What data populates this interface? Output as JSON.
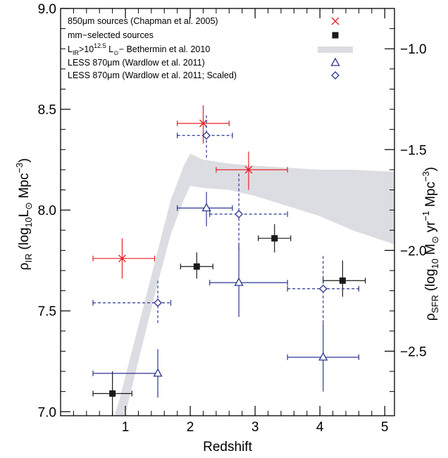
{
  "chart_data": {
    "type": "scatter",
    "xlabel": "Redshift",
    "ylabel_left": "ρIR (log10L⊙ Mpc−3)",
    "ylabel_right": "ρSFR (log10 M⊙ yr−1 Mpc−3)",
    "xlim": [
      0,
      5.15
    ],
    "ylim": [
      6.98,
      9.0
    ],
    "right_axis_offset": -9.8,
    "x_ticks": [
      1,
      2,
      3,
      4,
      5
    ],
    "y_ticks": [
      7.0,
      7.5,
      8.0,
      8.5,
      9.0
    ],
    "y_tick_labels": [
      "7.0",
      "7.5",
      "8.0",
      "8.5",
      "9.0"
    ],
    "right_ticks": [
      -1.0,
      -1.5,
      -2.0,
      -2.5
    ],
    "right_tick_labels": [
      "−1.0",
      "−1.5",
      "−2.0",
      "−2.5"
    ],
    "legend_position": "top-left",
    "colors": {
      "chapman": "#e8202a",
      "mm": "#1a1a1a",
      "bethermin": "#dcdde2",
      "wardlow": "#2c3690"
    },
    "band": {
      "name": "L_IR>10^12.5 L_⊙ – Bethermin et al. 2010",
      "upper": [
        [
          0.75,
          6.9
        ],
        [
          0.9,
          7.05
        ],
        [
          1.1,
          7.3
        ],
        [
          1.3,
          7.55
        ],
        [
          1.5,
          7.8
        ],
        [
          1.7,
          8.05
        ],
        [
          1.9,
          8.22
        ],
        [
          2.0,
          8.28
        ],
        [
          2.2,
          8.25
        ],
        [
          2.6,
          8.23
        ],
        [
          3.0,
          8.22
        ],
        [
          3.5,
          8.21
        ],
        [
          4.0,
          8.2
        ],
        [
          4.5,
          8.2
        ],
        [
          5.15,
          8.19
        ]
      ],
      "lower": [
        [
          5.15,
          7.83
        ],
        [
          4.5,
          7.9
        ],
        [
          4.0,
          7.97
        ],
        [
          3.5,
          8.02
        ],
        [
          3.0,
          8.07
        ],
        [
          2.6,
          8.1
        ],
        [
          2.2,
          8.11
        ],
        [
          2.0,
          8.12
        ],
        [
          1.9,
          8.05
        ],
        [
          1.7,
          7.88
        ],
        [
          1.5,
          7.64
        ],
        [
          1.3,
          7.38
        ],
        [
          1.1,
          7.12
        ],
        [
          0.98,
          6.96
        ],
        [
          0.9,
          6.9
        ]
      ]
    },
    "series": [
      {
        "key": "chapman",
        "marker": "x",
        "dashed": false,
        "points": [
          {
            "x": 0.95,
            "y": 7.76,
            "xlo": 0.5,
            "xhi": 1.45,
            "ylo": 7.66,
            "yhi": 7.86
          },
          {
            "x": 2.2,
            "y": 8.43,
            "xlo": 1.8,
            "xhi": 2.6,
            "ylo": 8.33,
            "yhi": 8.52
          },
          {
            "x": 2.9,
            "y": 8.2,
            "xlo": 2.4,
            "xhi": 3.5,
            "ylo": 8.1,
            "yhi": 8.29
          }
        ]
      },
      {
        "key": "mm",
        "marker": "square",
        "dashed": false,
        "points": [
          {
            "x": 0.8,
            "y": 7.09,
            "xlo": 0.5,
            "xhi": 1.1,
            "ylo": 6.98,
            "yhi": 7.2
          },
          {
            "x": 2.1,
            "y": 7.72,
            "xlo": 1.85,
            "xhi": 2.35,
            "ylo": 7.66,
            "yhi": 7.79
          },
          {
            "x": 3.3,
            "y": 7.86,
            "xlo": 3.05,
            "xhi": 3.55,
            "ylo": 7.79,
            "yhi": 7.93
          },
          {
            "x": 4.35,
            "y": 7.65,
            "xlo": 4.05,
            "xhi": 4.7,
            "ylo": 7.57,
            "yhi": 7.75
          }
        ]
      },
      {
        "key": "wardlow",
        "marker": "triangle",
        "dashed": false,
        "points": [
          {
            "x": 1.5,
            "y": 7.19,
            "xlo": 0.5,
            "xhi": 1.5,
            "ylo": 7.07,
            "yhi": 7.31
          },
          {
            "x": 2.25,
            "y": 8.01,
            "xlo": 1.8,
            "xhi": 2.65,
            "ylo": 7.92,
            "yhi": 8.09
          },
          {
            "x": 2.75,
            "y": 7.64,
            "xlo": 2.3,
            "xhi": 3.5,
            "ylo": 7.47,
            "yhi": 7.83
          },
          {
            "x": 4.05,
            "y": 7.27,
            "xlo": 3.5,
            "xhi": 4.6,
            "ylo": 7.1,
            "yhi": 7.44
          }
        ]
      },
      {
        "key": "wardlow",
        "marker": "diamond",
        "dashed": true,
        "points": [
          {
            "x": 1.5,
            "y": 7.54,
            "xlo": 0.5,
            "xhi": 1.7,
            "ylo": 7.44,
            "yhi": 7.66
          },
          {
            "x": 2.25,
            "y": 8.37,
            "xlo": 1.8,
            "xhi": 2.65,
            "ylo": 8.26,
            "yhi": 8.47
          },
          {
            "x": 2.75,
            "y": 7.98,
            "xlo": 2.3,
            "xhi": 3.5,
            "ylo": 7.8,
            "yhi": 8.18
          },
          {
            "x": 4.05,
            "y": 7.61,
            "xlo": 3.5,
            "xhi": 4.6,
            "ylo": 7.44,
            "yhi": 7.78
          }
        ]
      }
    ],
    "legend": [
      {
        "marker": "x",
        "color_key": "chapman",
        "label": "850μm sources (Chapman et al. 2005)"
      },
      {
        "marker": "square",
        "color_key": "mm",
        "label": "mm−selected sources"
      },
      {
        "marker": "band",
        "color_key": "bethermin",
        "label_parts": [
          "L",
          "IR",
          ">10",
          "12.5",
          " L",
          "⊙",
          "− Bethermin et al. 2010"
        ]
      },
      {
        "marker": "triangle",
        "color_key": "wardlow",
        "label_parts": [
          "LESS 870",
          "μ",
          "m (Wardlow et al. 2011)"
        ]
      },
      {
        "marker": "diamond",
        "color_key": "wardlow",
        "label_parts": [
          "LESS 870",
          "μ",
          "m (Wardlow et al. 2011; Scaled)"
        ]
      }
    ]
  }
}
